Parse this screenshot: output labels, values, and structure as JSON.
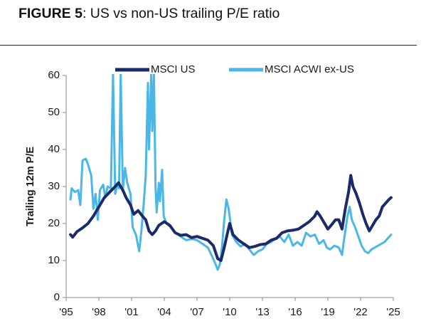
{
  "figure": {
    "title_lead": "FIGURE 5",
    "title_rest": ": US vs non-US trailing P/E ratio"
  },
  "chart_data": {
    "type": "line",
    "title": "FIGURE 5: US vs non-US trailing P/E ratio",
    "xlabel": "",
    "ylabel": "Trailing 12m P/E",
    "xlim": [
      1995,
      2025
    ],
    "ylim": [
      0,
      60
    ],
    "x_ticks": [
      1995,
      1998,
      2001,
      2004,
      2007,
      2010,
      2013,
      2016,
      2019,
      2022,
      2025
    ],
    "x_tick_labels": [
      "'95",
      "'98",
      "'01",
      "'04",
      "'07",
      "'10",
      "'13",
      "'16",
      "'19",
      "'22",
      "'25"
    ],
    "y_ticks": [
      0,
      10,
      20,
      30,
      40,
      50,
      60
    ],
    "y_tick_labels": [
      "0",
      "10",
      "20",
      "30",
      "40",
      "50",
      "60"
    ],
    "grid": false,
    "legend_position": "top",
    "series": [
      {
        "name": "MSCI US",
        "color": "#1b2a6b",
        "points": [
          [
            1995.4,
            17
          ],
          [
            1995.6,
            16.3
          ],
          [
            1996.0,
            17.8
          ],
          [
            1996.5,
            18.8
          ],
          [
            1997.0,
            20
          ],
          [
            1997.5,
            22
          ],
          [
            1998.0,
            24.5
          ],
          [
            1998.5,
            27
          ],
          [
            1999.0,
            28.5
          ],
          [
            1999.5,
            30
          ],
          [
            1999.8,
            31
          ],
          [
            2000.2,
            29
          ],
          [
            2000.5,
            27
          ],
          [
            2000.9,
            25
          ],
          [
            2001.2,
            22.5
          ],
          [
            2001.6,
            23.5
          ],
          [
            2002.0,
            22
          ],
          [
            2002.3,
            21
          ],
          [
            2002.6,
            18
          ],
          [
            2002.9,
            17
          ],
          [
            2003.2,
            18
          ],
          [
            2003.5,
            19.5
          ],
          [
            2004.0,
            20.5
          ],
          [
            2004.5,
            19.5
          ],
          [
            2005.0,
            17.5
          ],
          [
            2005.5,
            16.8
          ],
          [
            2006.0,
            17
          ],
          [
            2006.5,
            16.2
          ],
          [
            2007.0,
            16.5
          ],
          [
            2007.5,
            16
          ],
          [
            2008.0,
            15.5
          ],
          [
            2008.5,
            14
          ],
          [
            2008.9,
            10.5
          ],
          [
            2009.2,
            10
          ],
          [
            2009.5,
            13.5
          ],
          [
            2009.8,
            17.5
          ],
          [
            2010.0,
            20
          ],
          [
            2010.3,
            17
          ],
          [
            2010.8,
            15.5
          ],
          [
            2011.3,
            14.5
          ],
          [
            2011.8,
            13.5
          ],
          [
            2012.3,
            13.8
          ],
          [
            2012.8,
            14.3
          ],
          [
            2013.3,
            14.5
          ],
          [
            2013.8,
            15.5
          ],
          [
            2014.3,
            16
          ],
          [
            2014.8,
            17.5
          ],
          [
            2015.3,
            18
          ],
          [
            2015.8,
            18.2
          ],
          [
            2016.3,
            18.5
          ],
          [
            2016.8,
            19.5
          ],
          [
            2017.3,
            20.5
          ],
          [
            2017.8,
            22
          ],
          [
            2018.0,
            23.2
          ],
          [
            2018.3,
            22
          ],
          [
            2018.7,
            20
          ],
          [
            2019.0,
            18.5
          ],
          [
            2019.3,
            19.5
          ],
          [
            2019.7,
            21
          ],
          [
            2020.0,
            21
          ],
          [
            2020.3,
            18.5
          ],
          [
            2020.6,
            24
          ],
          [
            2020.9,
            28.5
          ],
          [
            2021.1,
            33
          ],
          [
            2021.3,
            30
          ],
          [
            2021.6,
            28
          ],
          [
            2021.9,
            25.5
          ],
          [
            2022.2,
            22.5
          ],
          [
            2022.5,
            20
          ],
          [
            2022.8,
            18
          ],
          [
            2023.1,
            19.5
          ],
          [
            2023.4,
            21
          ],
          [
            2023.7,
            22
          ],
          [
            2024.0,
            24.5
          ],
          [
            2024.3,
            25.5
          ],
          [
            2024.6,
            26.5
          ],
          [
            2024.8,
            27
          ]
        ]
      },
      {
        "name": "MSCI ACWI ex-US",
        "color": "#4ab7e8",
        "points": [
          [
            1995.4,
            26.5
          ],
          [
            1995.5,
            29.5
          ],
          [
            1995.8,
            28.5
          ],
          [
            1996.1,
            29
          ],
          [
            1996.3,
            25
          ],
          [
            1996.5,
            37
          ],
          [
            1996.8,
            37.5
          ],
          [
            1997.0,
            36
          ],
          [
            1997.3,
            33
          ],
          [
            1997.5,
            24
          ],
          [
            1997.7,
            28
          ],
          [
            1997.9,
            21
          ],
          [
            1998.1,
            29
          ],
          [
            1998.4,
            30.5
          ],
          [
            1998.6,
            27
          ],
          [
            1998.8,
            30
          ],
          [
            1999.1,
            29.5
          ],
          [
            1999.3,
            60.5
          ],
          [
            1999.5,
            28
          ],
          [
            1999.7,
            30.5
          ],
          [
            1999.85,
            29.5
          ],
          [
            2000.0,
            60.5
          ],
          [
            2000.2,
            29
          ],
          [
            2000.4,
            35
          ],
          [
            2000.6,
            31
          ],
          [
            2000.9,
            28
          ],
          [
            2001.1,
            19
          ],
          [
            2001.4,
            17
          ],
          [
            2001.7,
            12.5
          ],
          [
            2001.9,
            18
          ],
          [
            2002.1,
            25
          ],
          [
            2002.3,
            33
          ],
          [
            2002.5,
            58
          ],
          [
            2002.6,
            40
          ],
          [
            2002.8,
            60.5
          ],
          [
            2002.9,
            45
          ],
          [
            2003.05,
            60.5
          ],
          [
            2003.2,
            30
          ],
          [
            2003.3,
            23
          ],
          [
            2003.5,
            31
          ],
          [
            2003.6,
            26
          ],
          [
            2003.8,
            34.5
          ],
          [
            2003.95,
            22
          ],
          [
            2004.2,
            20
          ],
          [
            2004.6,
            19
          ],
          [
            2005.0,
            17.5
          ],
          [
            2005.5,
            16.5
          ],
          [
            2006.0,
            15.5
          ],
          [
            2006.5,
            15.8
          ],
          [
            2007.0,
            15.5
          ],
          [
            2007.5,
            14.5
          ],
          [
            2008.0,
            13.5
          ],
          [
            2008.4,
            11
          ],
          [
            2008.7,
            9
          ],
          [
            2008.9,
            7.5
          ],
          [
            2009.1,
            9
          ],
          [
            2009.3,
            14
          ],
          [
            2009.5,
            21
          ],
          [
            2009.7,
            26.5
          ],
          [
            2009.9,
            24
          ],
          [
            2010.2,
            17
          ],
          [
            2010.6,
            15
          ],
          [
            2011.0,
            13.8
          ],
          [
            2011.4,
            14.5
          ],
          [
            2011.8,
            13
          ],
          [
            2012.2,
            11.5
          ],
          [
            2012.6,
            12.5
          ],
          [
            2013.0,
            13
          ],
          [
            2013.4,
            14.5
          ],
          [
            2013.8,
            15
          ],
          [
            2014.2,
            16
          ],
          [
            2014.6,
            16.5
          ],
          [
            2015.0,
            15
          ],
          [
            2015.4,
            17
          ],
          [
            2015.8,
            14
          ],
          [
            2016.2,
            15
          ],
          [
            2016.6,
            14
          ],
          [
            2017.0,
            17.5
          ],
          [
            2017.4,
            16.5
          ],
          [
            2017.8,
            17
          ],
          [
            2018.2,
            14.5
          ],
          [
            2018.6,
            15.5
          ],
          [
            2018.9,
            13.5
          ],
          [
            2019.2,
            13
          ],
          [
            2019.6,
            14
          ],
          [
            2020.0,
            13.5
          ],
          [
            2020.3,
            11.5
          ],
          [
            2020.5,
            16
          ],
          [
            2020.8,
            22
          ],
          [
            2021.0,
            24.5
          ],
          [
            2021.2,
            21
          ],
          [
            2021.5,
            19
          ],
          [
            2021.8,
            16.5
          ],
          [
            2022.1,
            14
          ],
          [
            2022.4,
            12.5
          ],
          [
            2022.7,
            12
          ],
          [
            2023.0,
            13
          ],
          [
            2023.3,
            13.5
          ],
          [
            2023.6,
            14
          ],
          [
            2023.9,
            14.5
          ],
          [
            2024.2,
            15
          ],
          [
            2024.5,
            16
          ],
          [
            2024.8,
            17
          ]
        ]
      }
    ]
  }
}
